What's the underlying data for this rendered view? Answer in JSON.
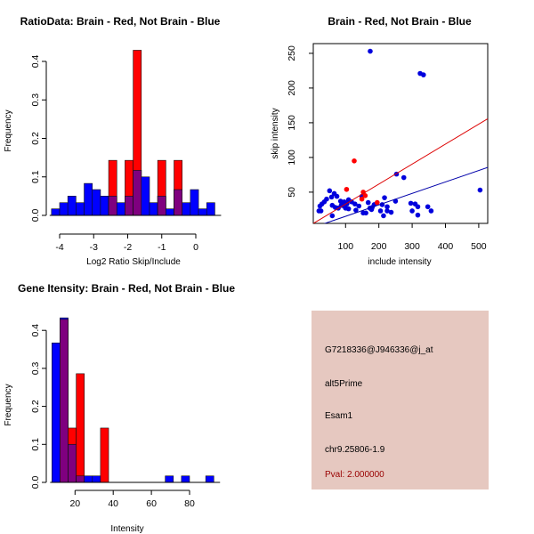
{
  "chart_data": [
    {
      "type": "bar",
      "id": "ratio",
      "title": "RatioData: Brain - Red, Not Brain - Blue",
      "xlabel": "Log2 Ratio Skip/Include",
      "ylabel": "Frequency",
      "xticks": [
        -4,
        -3,
        -2,
        -1,
        0
      ],
      "yticks": [
        0.0,
        0.1,
        0.2,
        0.3,
        0.4
      ],
      "bin_start": -4.24,
      "bin_width": 0.24,
      "series": [
        {
          "name": "Not Brain",
          "color": "#0000ff",
          "values": [
            0.017,
            0.033,
            0.05,
            0.033,
            0.083,
            0.067,
            0.05,
            0.05,
            0.033,
            0.05,
            0.117,
            0.1,
            0.033,
            0.05,
            0.017,
            0.067,
            0.033,
            0.067,
            0.017,
            0.033
          ]
        },
        {
          "name": "Brain",
          "color": "#ff0000",
          "values": [
            0,
            0,
            0,
            0,
            0,
            0,
            0,
            0.143,
            0,
            0.143,
            0.429,
            0,
            0,
            0.143,
            0,
            0.143,
            0,
            0,
            0,
            0
          ]
        }
      ],
      "overlap_color": "#7f007f"
    },
    {
      "type": "scatter",
      "id": "scatter",
      "title": "Brain - Red, Not Brain - Blue",
      "xlabel": "include intensity",
      "ylabel": "skip intensity",
      "xticks": [
        100,
        200,
        300,
        400,
        500
      ],
      "yticks": [
        50,
        100,
        150,
        200,
        250
      ],
      "xlim": [
        3,
        527
      ],
      "ylim": [
        5,
        264
      ],
      "series": [
        {
          "name": "Not Brain",
          "color": "#0000dd",
          "points": [
            [
              174,
              253
            ],
            [
              324,
              221
            ],
            [
              334,
              219
            ],
            [
              253,
              76
            ],
            [
              275,
              71
            ],
            [
              504,
              53
            ],
            [
              52,
              52
            ],
            [
              66,
              48
            ],
            [
              74,
              44
            ],
            [
              58,
              43
            ],
            [
              43,
              40
            ],
            [
              36,
              36
            ],
            [
              29,
              33
            ],
            [
              23,
              30
            ],
            [
              20,
              23
            ],
            [
              26,
              23
            ],
            [
              60,
              31
            ],
            [
              69,
              28
            ],
            [
              78,
              27
            ],
            [
              87,
              31
            ],
            [
              85,
              37
            ],
            [
              96,
              36
            ],
            [
              104,
              33
            ],
            [
              109,
              39
            ],
            [
              118,
              36
            ],
            [
              100,
              27
            ],
            [
              109,
              26
            ],
            [
              128,
              33
            ],
            [
              131,
              24
            ],
            [
              149,
              44
            ],
            [
              168,
              35
            ],
            [
              173,
              27
            ],
            [
              180,
              28
            ],
            [
              186,
              32
            ],
            [
              153,
              20
            ],
            [
              161,
              20
            ],
            [
              60,
              16
            ],
            [
              210,
              32
            ],
            [
              217,
              42
            ],
            [
              225,
              29
            ],
            [
              225,
              23
            ],
            [
              205,
              23
            ],
            [
              214,
              16
            ],
            [
              237,
              21
            ],
            [
              250,
              37
            ],
            [
              296,
              34
            ],
            [
              309,
              33
            ],
            [
              300,
              23
            ],
            [
              317,
              29
            ],
            [
              317,
              17
            ],
            [
              347,
              29
            ],
            [
              357,
              23
            ],
            [
              90,
              33
            ],
            [
              95,
              30
            ],
            [
              140,
              30
            ],
            [
              178,
              25
            ]
          ],
          "fit": {
            "slope": 0.165,
            "intercept": -1.3
          }
        },
        {
          "name": "Brain",
          "color": "#ff0000",
          "points": [
            [
              103,
              54
            ],
            [
              126,
              95
            ],
            [
              153,
              50
            ],
            [
              159,
              45
            ],
            [
              149,
              40
            ],
            [
              195,
              35
            ]
          ],
          "fit": {
            "slope": 0.288,
            "intercept": 4
          }
        }
      ]
    },
    {
      "type": "bar",
      "id": "intensity",
      "title": "Gene Itensity: Brain - Red, Not Brain - Blue",
      "xlabel": "Intensity",
      "ylabel": "Frequency",
      "xticks": [
        20,
        40,
        60,
        80
      ],
      "yticks": [
        0.0,
        0.1,
        0.2,
        0.3,
        0.4
      ],
      "bin_start": 7.9,
      "bin_width": 4.24,
      "series": [
        {
          "name": "Not Brain",
          "color": "#0000ff",
          "values": [
            0.367,
            0.433,
            0.1,
            0.017,
            0.017,
            0.017,
            0,
            0,
            0,
            0,
            0,
            0,
            0,
            0,
            0.017,
            0,
            0.017,
            0,
            0,
            0.017
          ]
        },
        {
          "name": "Brain",
          "color": "#ff0000",
          "values": [
            0,
            0.429,
            0.143,
            0.286,
            0,
            0,
            0.143,
            0,
            0,
            0,
            0,
            0,
            0,
            0,
            0,
            0,
            0,
            0,
            0,
            0
          ]
        }
      ],
      "overlap_color": "#7f007f"
    }
  ],
  "info_panel": {
    "probe_id": "G7218336@J946336@j_at",
    "event_type": "alt5Prime",
    "gene": "Esam1",
    "location": "chr9.25806-1.9",
    "pval": "Pval: 2.000000",
    "background": "#e6c8c0",
    "pval_color": "#990000"
  }
}
